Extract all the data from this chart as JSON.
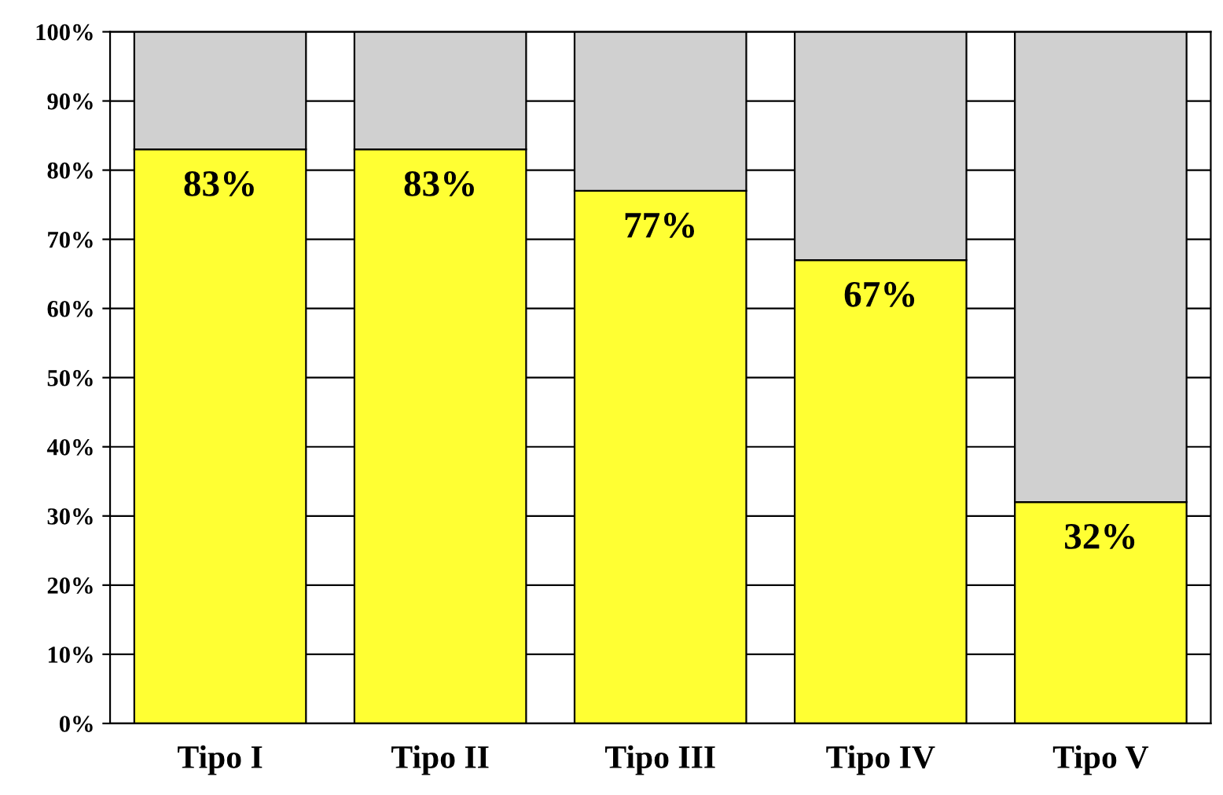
{
  "chart_data": {
    "type": "bar",
    "stacked": true,
    "categories": [
      "Tipo I",
      "Tipo II",
      "Tipo III",
      "Tipo IV",
      "Tipo V"
    ],
    "series": [
      {
        "color": "#ffff33",
        "values": [
          83,
          83,
          77,
          67,
          32
        ],
        "value_labels": [
          "83%",
          "83%",
          "77%",
          "67%",
          "32%"
        ]
      },
      {
        "color": "#d0d0d0",
        "values": [
          17,
          17,
          23,
          33,
          68
        ]
      }
    ],
    "ylim": [
      0,
      100
    ],
    "yticks": [
      {
        "value": 0,
        "label": "0%"
      },
      {
        "value": 10,
        "label": "10%"
      },
      {
        "value": 20,
        "label": "20%"
      },
      {
        "value": 30,
        "label": "30%"
      },
      {
        "value": 40,
        "label": "40%"
      },
      {
        "value": 50,
        "label": "50%"
      },
      {
        "value": 60,
        "label": "60%"
      },
      {
        "value": 70,
        "label": "70%"
      },
      {
        "value": 80,
        "label": "80%"
      },
      {
        "value": 90,
        "label": "90%"
      },
      {
        "value": 100,
        "label": "100%"
      }
    ],
    "grid": "y"
  }
}
